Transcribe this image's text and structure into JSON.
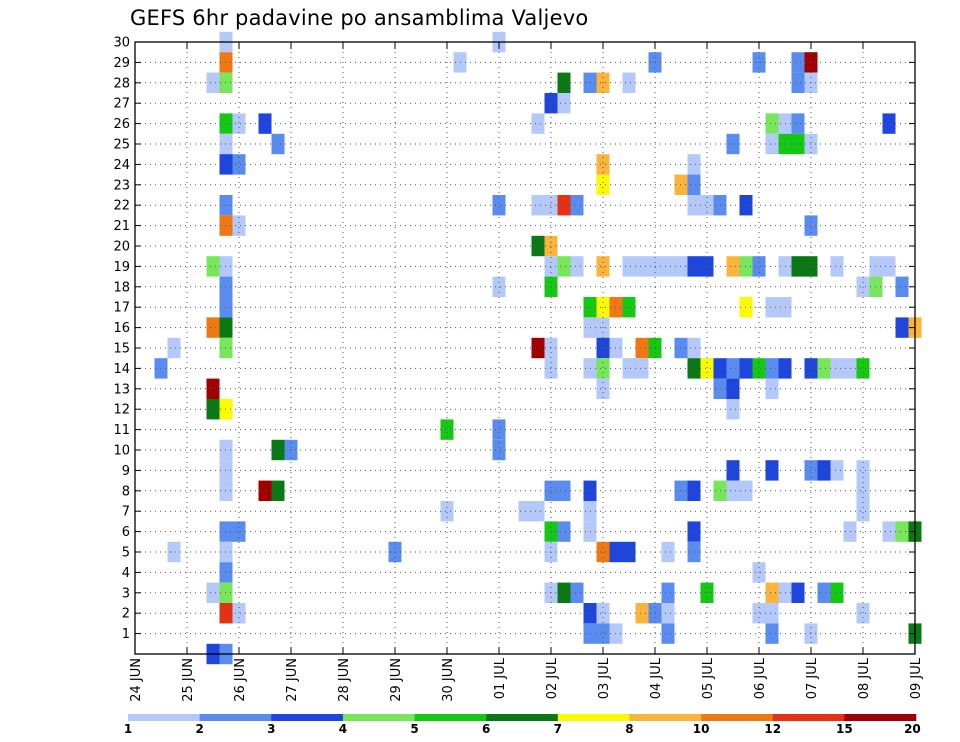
{
  "chart_data": {
    "type": "heatmap",
    "title": "GEFS 6hr padavine po ansamblima Valjevo",
    "xlabel": "",
    "ylabel": "",
    "x_ticks": [
      "24 JUN",
      "25 JUN",
      "26 JUN",
      "27 JUN",
      "28 JUN",
      "29 JUN",
      "30 JUN",
      "01 JUL",
      "02 JUL",
      "03 JUL",
      "04 JUL",
      "05 JUL",
      "06 JUL",
      "07 JUL",
      "08 JUL",
      "09 JUL"
    ],
    "x_range_hours": [
      0,
      360
    ],
    "y_ticks": [
      1,
      2,
      3,
      4,
      5,
      6,
      7,
      8,
      9,
      10,
      11,
      12,
      13,
      14,
      15,
      16,
      17,
      18,
      19,
      20,
      21,
      22,
      23,
      24,
      25,
      26,
      27,
      28,
      29,
      30
    ],
    "y_range": [
      0,
      30
    ],
    "grid": true,
    "colorbar": {
      "thresholds": [
        "1",
        "2",
        "3",
        "4",
        "5",
        "6",
        "7",
        "8",
        "10",
        "12",
        "15",
        "20"
      ],
      "colors": [
        "#b4c8fa",
        "#5a8cf0",
        "#1e46dc",
        "#78e65a",
        "#14c814",
        "#0a7814",
        "#fafa00",
        "#fab43c",
        "#f07814",
        "#e63214",
        "#a00000"
      ]
    },
    "cells_note": "each cell: [member, forecast hour (6h step from 24 JUN 00Z), category index 1-11]",
    "cells": [
      [
        30,
        42,
        1
      ],
      [
        30,
        168,
        1
      ],
      [
        29,
        42,
        9
      ],
      [
        29,
        150,
        1
      ],
      [
        29,
        240,
        2
      ],
      [
        29,
        288,
        2
      ],
      [
        29,
        306,
        2
      ],
      [
        29,
        312,
        11
      ],
      [
        28,
        36,
        1
      ],
      [
        28,
        42,
        4
      ],
      [
        28,
        198,
        6
      ],
      [
        28,
        210,
        2
      ],
      [
        28,
        216,
        8
      ],
      [
        28,
        228,
        1
      ],
      [
        28,
        306,
        2
      ],
      [
        28,
        312,
        1
      ],
      [
        27,
        192,
        3
      ],
      [
        27,
        198,
        1
      ],
      [
        26,
        42,
        5
      ],
      [
        26,
        48,
        1
      ],
      [
        26,
        60,
        3
      ],
      [
        26,
        186,
        1
      ],
      [
        26,
        294,
        4
      ],
      [
        26,
        300,
        1
      ],
      [
        26,
        306,
        2
      ],
      [
        26,
        348,
        3
      ],
      [
        25,
        42,
        1
      ],
      [
        25,
        66,
        2
      ],
      [
        25,
        276,
        2
      ],
      [
        25,
        294,
        1
      ],
      [
        25,
        300,
        5
      ],
      [
        25,
        306,
        5
      ],
      [
        25,
        312,
        1
      ],
      [
        24,
        42,
        3
      ],
      [
        24,
        48,
        2
      ],
      [
        24,
        216,
        8
      ],
      [
        24,
        258,
        1
      ],
      [
        23,
        216,
        7
      ],
      [
        23,
        252,
        8
      ],
      [
        23,
        258,
        2
      ],
      [
        22,
        42,
        2
      ],
      [
        22,
        168,
        2
      ],
      [
        22,
        186,
        1
      ],
      [
        22,
        192,
        1
      ],
      [
        22,
        198,
        10
      ],
      [
        22,
        204,
        2
      ],
      [
        22,
        258,
        1
      ],
      [
        22,
        264,
        1
      ],
      [
        22,
        270,
        2
      ],
      [
        22,
        282,
        3
      ],
      [
        21,
        42,
        9
      ],
      [
        21,
        48,
        1
      ],
      [
        21,
        312,
        2
      ],
      [
        20,
        186,
        6
      ],
      [
        20,
        192,
        8
      ],
      [
        19,
        36,
        4
      ],
      [
        19,
        42,
        1
      ],
      [
        19,
        192,
        1
      ],
      [
        19,
        198,
        4
      ],
      [
        19,
        204,
        1
      ],
      [
        19,
        216,
        8
      ],
      [
        19,
        228,
        1
      ],
      [
        19,
        234,
        1
      ],
      [
        19,
        240,
        1
      ],
      [
        19,
        246,
        1
      ],
      [
        19,
        252,
        1
      ],
      [
        19,
        258,
        3
      ],
      [
        19,
        264,
        3
      ],
      [
        19,
        276,
        8
      ],
      [
        19,
        282,
        4
      ],
      [
        19,
        288,
        2
      ],
      [
        19,
        300,
        1
      ],
      [
        19,
        306,
        6
      ],
      [
        19,
        312,
        6
      ],
      [
        19,
        324,
        1
      ],
      [
        19,
        342,
        1
      ],
      [
        19,
        348,
        1
      ],
      [
        18,
        42,
        2
      ],
      [
        18,
        168,
        1
      ],
      [
        18,
        192,
        5
      ],
      [
        18,
        336,
        1
      ],
      [
        18,
        342,
        4
      ],
      [
        18,
        354,
        2
      ],
      [
        17,
        42,
        2
      ],
      [
        17,
        210,
        5
      ],
      [
        17,
        216,
        7
      ],
      [
        17,
        222,
        9
      ],
      [
        17,
        228,
        5
      ],
      [
        17,
        282,
        7
      ],
      [
        17,
        294,
        1
      ],
      [
        17,
        300,
        1
      ],
      [
        16,
        36,
        9
      ],
      [
        16,
        42,
        6
      ],
      [
        16,
        210,
        1
      ],
      [
        16,
        216,
        1
      ],
      [
        16,
        354,
        3
      ],
      [
        16,
        360,
        8
      ],
      [
        15,
        42,
        4
      ],
      [
        15,
        18,
        1
      ],
      [
        15,
        186,
        11
      ],
      [
        15,
        192,
        1
      ],
      [
        15,
        216,
        3
      ],
      [
        15,
        222,
        1
      ],
      [
        15,
        234,
        9
      ],
      [
        15,
        240,
        5
      ],
      [
        15,
        252,
        2
      ],
      [
        15,
        258,
        1
      ],
      [
        14,
        12,
        2
      ],
      [
        14,
        192,
        1
      ],
      [
        14,
        210,
        1
      ],
      [
        14,
        216,
        4
      ],
      [
        14,
        228,
        1
      ],
      [
        14,
        234,
        1
      ],
      [
        14,
        258,
        6
      ],
      [
        14,
        264,
        7
      ],
      [
        14,
        270,
        3
      ],
      [
        14,
        276,
        2
      ],
      [
        14,
        282,
        3
      ],
      [
        14,
        288,
        5
      ],
      [
        14,
        294,
        2
      ],
      [
        14,
        300,
        3
      ],
      [
        14,
        312,
        3
      ],
      [
        14,
        318,
        4
      ],
      [
        14,
        324,
        1
      ],
      [
        14,
        330,
        1
      ],
      [
        14,
        336,
        5
      ],
      [
        13,
        36,
        11
      ],
      [
        13,
        216,
        1
      ],
      [
        13,
        270,
        2
      ],
      [
        13,
        276,
        3
      ],
      [
        13,
        294,
        1
      ],
      [
        12,
        36,
        6
      ],
      [
        12,
        42,
        7
      ],
      [
        12,
        276,
        1
      ],
      [
        11,
        144,
        5
      ],
      [
        11,
        168,
        2
      ],
      [
        10,
        42,
        1
      ],
      [
        10,
        66,
        6
      ],
      [
        10,
        72,
        2
      ],
      [
        10,
        168,
        2
      ],
      [
        9,
        42,
        1
      ],
      [
        9,
        276,
        3
      ],
      [
        9,
        294,
        3
      ],
      [
        9,
        312,
        2
      ],
      [
        9,
        318,
        3
      ],
      [
        9,
        324,
        1
      ],
      [
        9,
        336,
        1
      ],
      [
        8,
        42,
        1
      ],
      [
        8,
        60,
        11
      ],
      [
        8,
        66,
        6
      ],
      [
        8,
        192,
        2
      ],
      [
        8,
        198,
        2
      ],
      [
        8,
        210,
        3
      ],
      [
        8,
        252,
        2
      ],
      [
        8,
        258,
        3
      ],
      [
        8,
        270,
        4
      ],
      [
        8,
        276,
        1
      ],
      [
        8,
        282,
        1
      ],
      [
        8,
        336,
        1
      ],
      [
        7,
        144,
        1
      ],
      [
        7,
        180,
        1
      ],
      [
        7,
        186,
        1
      ],
      [
        7,
        210,
        1
      ],
      [
        7,
        336,
        1
      ],
      [
        6,
        42,
        2
      ],
      [
        6,
        48,
        2
      ],
      [
        6,
        192,
        5
      ],
      [
        6,
        198,
        2
      ],
      [
        6,
        210,
        1
      ],
      [
        6,
        258,
        3
      ],
      [
        6,
        330,
        1
      ],
      [
        6,
        348,
        1
      ],
      [
        6,
        354,
        4
      ],
      [
        6,
        360,
        6
      ],
      [
        5,
        18,
        1
      ],
      [
        5,
        42,
        1
      ],
      [
        5,
        120,
        2
      ],
      [
        5,
        192,
        1
      ],
      [
        5,
        216,
        9
      ],
      [
        5,
        222,
        3
      ],
      [
        5,
        228,
        3
      ],
      [
        5,
        246,
        1
      ],
      [
        5,
        258,
        2
      ],
      [
        4,
        42,
        2
      ],
      [
        4,
        288,
        1
      ],
      [
        3,
        36,
        1
      ],
      [
        3,
        42,
        4
      ],
      [
        3,
        192,
        1
      ],
      [
        3,
        198,
        6
      ],
      [
        3,
        204,
        2
      ],
      [
        3,
        246,
        2
      ],
      [
        3,
        264,
        5
      ],
      [
        3,
        294,
        8
      ],
      [
        3,
        300,
        1
      ],
      [
        3,
        306,
        3
      ],
      [
        3,
        318,
        2
      ],
      [
        3,
        324,
        5
      ],
      [
        2,
        42,
        10
      ],
      [
        2,
        48,
        1
      ],
      [
        2,
        210,
        3
      ],
      [
        2,
        216,
        1
      ],
      [
        2,
        234,
        8
      ],
      [
        2,
        240,
        2
      ],
      [
        2,
        246,
        1
      ],
      [
        2,
        288,
        1
      ],
      [
        2,
        294,
        1
      ],
      [
        2,
        336,
        1
      ],
      [
        1,
        210,
        2
      ],
      [
        1,
        216,
        2
      ],
      [
        1,
        222,
        1
      ],
      [
        1,
        246,
        2
      ],
      [
        1,
        294,
        2
      ],
      [
        1,
        312,
        1
      ],
      [
        1,
        360,
        6
      ],
      [
        0,
        36,
        3
      ],
      [
        0,
        42,
        2
      ]
    ]
  }
}
